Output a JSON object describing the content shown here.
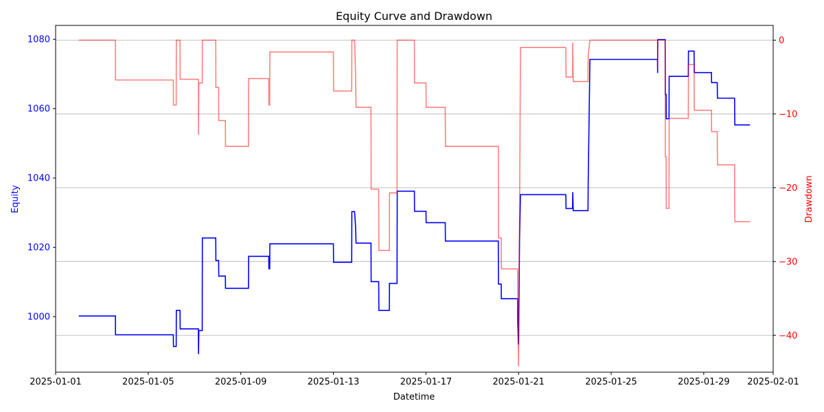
{
  "chart_data": {
    "type": "line",
    "title": "Equity Curve and Drawdown",
    "xlabel": "Datetime",
    "ylabel_left": "Equity",
    "ylabel_right": "Drawdown",
    "xlim": [
      "2025-01-01 00:00",
      "2025-02-01 00:00"
    ],
    "ylim_left": [
      984,
      1084
    ],
    "ylim_right": [
      -45,
      2
    ],
    "xticks": [
      "2025-01-01",
      "2025-01-05",
      "2025-01-09",
      "2025-01-13",
      "2025-01-17",
      "2025-01-21",
      "2025-01-25",
      "2025-01-29",
      "2025-02-01"
    ],
    "yticks_left": [
      1000,
      1020,
      1040,
      1060,
      1080
    ],
    "yticks_right": [
      0,
      -10,
      -20,
      -30,
      -40
    ],
    "grid": "horizontal",
    "colors": {
      "equity": "#0000ff",
      "drawdown": "#ff0000",
      "grid": "#b0b0b0",
      "axis": "#000000"
    },
    "series": [
      {
        "name": "Equity",
        "axis": "left",
        "points": [
          [
            "2025-01-02 00:00",
            1000.2
          ],
          [
            "2025-01-03 14:00",
            1000.2
          ],
          [
            "2025-01-03 14:05",
            994.8
          ],
          [
            "2025-01-06 02:00",
            994.8
          ],
          [
            "2025-01-06 02:10",
            991.4
          ],
          [
            "2025-01-06 05:00",
            991.4
          ],
          [
            "2025-01-06 05:10",
            1001.8
          ],
          [
            "2025-01-06 09:00",
            1001.8
          ],
          [
            "2025-01-06 09:10",
            996.5
          ],
          [
            "2025-01-07 04:00",
            996.5
          ],
          [
            "2025-01-07 04:10",
            989.2
          ],
          [
            "2025-01-07 04:30",
            996.0
          ],
          [
            "2025-01-07 08:00",
            996.0
          ],
          [
            "2025-01-07 08:10",
            1022.7
          ],
          [
            "2025-01-07 22:00",
            1022.7
          ],
          [
            "2025-01-07 22:10",
            1016.2
          ],
          [
            "2025-01-08 01:00",
            1016.2
          ],
          [
            "2025-01-08 01:10",
            1011.7
          ],
          [
            "2025-01-08 08:00",
            1011.7
          ],
          [
            "2025-01-08 08:10",
            1008.2
          ],
          [
            "2025-01-09 08:00",
            1008.2
          ],
          [
            "2025-01-09 08:10",
            1017.4
          ],
          [
            "2025-01-10 05:00",
            1017.4
          ],
          [
            "2025-01-10 05:10",
            1013.8
          ],
          [
            "2025-01-10 06:00",
            1013.8
          ],
          [
            "2025-01-10 06:10",
            1021.0
          ],
          [
            "2025-01-13 00:00",
            1021.0
          ],
          [
            "2025-01-13 00:10",
            1015.7
          ],
          [
            "2025-01-13 19:00",
            1015.7
          ],
          [
            "2025-01-13 19:10",
            1030.3
          ],
          [
            "2025-01-13 22:00",
            1030.3
          ],
          [
            "2025-01-13 23:00",
            1026.0
          ],
          [
            "2025-01-13 23:30",
            1021.2
          ],
          [
            "2025-01-14 15:00",
            1021.2
          ],
          [
            "2025-01-14 15:10",
            1010.1
          ],
          [
            "2025-01-14 23:00",
            1010.1
          ],
          [
            "2025-01-14 23:10",
            1001.8
          ],
          [
            "2025-01-15 10:00",
            1001.8
          ],
          [
            "2025-01-15 10:10",
            1009.6
          ],
          [
            "2025-01-15 18:00",
            1009.6
          ],
          [
            "2025-01-15 18:10",
            1036.2
          ],
          [
            "2025-01-16 12:00",
            1036.2
          ],
          [
            "2025-01-16 12:10",
            1030.4
          ],
          [
            "2025-01-17 00:00",
            1030.4
          ],
          [
            "2025-01-17 00:10",
            1027.1
          ],
          [
            "2025-01-17 20:00",
            1027.1
          ],
          [
            "2025-01-17 20:10",
            1021.8
          ],
          [
            "2025-01-20 03:00",
            1021.8
          ],
          [
            "2025-01-20 03:10",
            1009.4
          ],
          [
            "2025-01-20 06:00",
            1009.4
          ],
          [
            "2025-01-20 06:10",
            1005.2
          ],
          [
            "2025-01-20 23:00",
            1005.2
          ],
          [
            "2025-01-20 23:10",
            998.0
          ],
          [
            "2025-01-21 00:00",
            992.0
          ],
          [
            "2025-01-21 01:00",
            1022.0
          ],
          [
            "2025-01-21 02:00",
            1035.2
          ],
          [
            "2025-01-23 01:00",
            1035.2
          ],
          [
            "2025-01-23 01:10",
            1031.2
          ],
          [
            "2025-01-23 08:00",
            1031.2
          ],
          [
            "2025-01-23 08:10",
            1035.9
          ],
          [
            "2025-01-23 08:40",
            1030.6
          ],
          [
            "2025-01-24 00:00",
            1030.6
          ],
          [
            "2025-01-24 00:10",
            1038.5
          ],
          [
            "2025-01-24 02:00",
            1074.2
          ],
          [
            "2025-01-27 00:00",
            1074.2
          ],
          [
            "2025-01-27 00:10",
            1070.3
          ],
          [
            "2025-01-27 00:20",
            1079.9
          ],
          [
            "2025-01-27 08:00",
            1079.9
          ],
          [
            "2025-01-27 08:10",
            1064.1
          ],
          [
            "2025-01-27 09:00",
            1064.1
          ],
          [
            "2025-01-27 09:10",
            1057.1
          ],
          [
            "2025-01-27 12:00",
            1057.1
          ],
          [
            "2025-01-27 12:10",
            1069.3
          ],
          [
            "2025-01-28 08:00",
            1069.3
          ],
          [
            "2025-01-28 08:10",
            1076.6
          ],
          [
            "2025-01-28 14:00",
            1076.6
          ],
          [
            "2025-01-28 14:10",
            1070.4
          ],
          [
            "2025-01-29 08:00",
            1070.4
          ],
          [
            "2025-01-29 08:10",
            1067.5
          ],
          [
            "2025-01-29 08:10",
            1067.5
          ],
          [
            "2025-01-29 14:00",
            1067.5
          ],
          [
            "2025-01-29 14:10",
            1063.0
          ],
          [
            "2025-01-30 08:00",
            1063.0
          ],
          [
            "2025-01-30 08:10",
            1055.3
          ],
          [
            "2025-01-31 00:00",
            1055.3
          ]
        ]
      },
      {
        "name": "Drawdown",
        "axis": "right",
        "points": [
          [
            "2025-01-02 00:00",
            0.0
          ],
          [
            "2025-01-03 14:00",
            0.0
          ],
          [
            "2025-01-03 14:05",
            -5.4
          ],
          [
            "2025-01-06 02:00",
            -5.4
          ],
          [
            "2025-01-06 02:10",
            -8.8
          ],
          [
            "2025-01-06 05:00",
            -8.8
          ],
          [
            "2025-01-06 05:10",
            0.0
          ],
          [
            "2025-01-06 09:00",
            0.0
          ],
          [
            "2025-01-06 09:10",
            -5.3
          ],
          [
            "2025-01-07 04:00",
            -5.3
          ],
          [
            "2025-01-07 04:10",
            -12.8
          ],
          [
            "2025-01-07 04:30",
            -5.8
          ],
          [
            "2025-01-07 08:00",
            -5.8
          ],
          [
            "2025-01-07 08:10",
            0.0
          ],
          [
            "2025-01-07 22:00",
            0.0
          ],
          [
            "2025-01-07 22:10",
            -6.4
          ],
          [
            "2025-01-08 01:00",
            -6.4
          ],
          [
            "2025-01-08 01:10",
            -10.9
          ],
          [
            "2025-01-08 08:00",
            -10.9
          ],
          [
            "2025-01-08 08:10",
            -14.4
          ],
          [
            "2025-01-09 08:00",
            -14.4
          ],
          [
            "2025-01-09 08:10",
            -5.2
          ],
          [
            "2025-01-10 05:00",
            -5.2
          ],
          [
            "2025-01-10 05:10",
            -8.8
          ],
          [
            "2025-01-10 06:00",
            -8.8
          ],
          [
            "2025-01-10 06:10",
            -1.6
          ],
          [
            "2025-01-13 00:00",
            -1.6
          ],
          [
            "2025-01-13 00:10",
            -6.9
          ],
          [
            "2025-01-13 19:00",
            -6.9
          ],
          [
            "2025-01-13 19:10",
            0.0
          ],
          [
            "2025-01-13 22:00",
            0.0
          ],
          [
            "2025-01-13 23:00",
            -4.3
          ],
          [
            "2025-01-13 23:30",
            -9.1
          ],
          [
            "2025-01-14 15:00",
            -9.1
          ],
          [
            "2025-01-14 15:10",
            -20.2
          ],
          [
            "2025-01-14 23:00",
            -20.2
          ],
          [
            "2025-01-14 23:10",
            -28.5
          ],
          [
            "2025-01-15 10:00",
            -28.5
          ],
          [
            "2025-01-15 10:10",
            -20.7
          ],
          [
            "2025-01-15 18:00",
            -20.7
          ],
          [
            "2025-01-15 18:10",
            0.0
          ],
          [
            "2025-01-16 12:00",
            0.0
          ],
          [
            "2025-01-16 12:10",
            -5.8
          ],
          [
            "2025-01-17 00:00",
            -5.8
          ],
          [
            "2025-01-17 00:10",
            -9.1
          ],
          [
            "2025-01-17 20:00",
            -9.1
          ],
          [
            "2025-01-17 20:10",
            -14.4
          ],
          [
            "2025-01-20 03:00",
            -14.4
          ],
          [
            "2025-01-20 03:10",
            -26.8
          ],
          [
            "2025-01-20 06:00",
            -26.8
          ],
          [
            "2025-01-20 06:10",
            -31.0
          ],
          [
            "2025-01-20 23:00",
            -31.0
          ],
          [
            "2025-01-20 23:10",
            -38.0
          ],
          [
            "2025-01-21 00:00",
            -44.2
          ],
          [
            "2025-01-21 01:00",
            -25.0
          ],
          [
            "2025-01-21 02:00",
            -1.0
          ],
          [
            "2025-01-23 01:00",
            -1.0
          ],
          [
            "2025-01-23 01:10",
            -5.0
          ],
          [
            "2025-01-23 08:00",
            -5.0
          ],
          [
            "2025-01-23 08:10",
            -0.3
          ],
          [
            "2025-01-23 08:40",
            -5.6
          ],
          [
            "2025-01-24 00:00",
            -5.6
          ],
          [
            "2025-01-24 00:10",
            -2.0
          ],
          [
            "2025-01-24 02:00",
            0.0
          ],
          [
            "2025-01-27 00:00",
            0.0
          ],
          [
            "2025-01-27 00:10",
            -3.9
          ],
          [
            "2025-01-27 00:20",
            0.0
          ],
          [
            "2025-01-27 08:00",
            0.0
          ],
          [
            "2025-01-27 08:10",
            -15.8
          ],
          [
            "2025-01-27 09:00",
            -15.8
          ],
          [
            "2025-01-27 09:10",
            -22.8
          ],
          [
            "2025-01-27 12:00",
            -22.8
          ],
          [
            "2025-01-27 12:10",
            -10.6
          ],
          [
            "2025-01-28 08:00",
            -10.6
          ],
          [
            "2025-01-28 08:10",
            -3.3
          ],
          [
            "2025-01-28 14:00",
            -3.3
          ],
          [
            "2025-01-28 14:10",
            -9.5
          ],
          [
            "2025-01-29 08:00",
            -9.5
          ],
          [
            "2025-01-29 08:10",
            -12.4
          ],
          [
            "2025-01-29 14:00",
            -12.4
          ],
          [
            "2025-01-29 14:10",
            -16.9
          ],
          [
            "2025-01-30 08:00",
            -16.9
          ],
          [
            "2025-01-30 08:10",
            -24.6
          ],
          [
            "2025-01-31 00:00",
            -24.6
          ]
        ]
      }
    ]
  }
}
